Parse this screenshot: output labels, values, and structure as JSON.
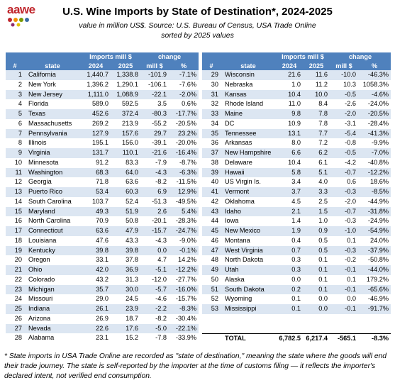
{
  "logo": "aawe",
  "title": "U.S. Wine Imports by State of Destination*, 2024-2025",
  "subtitle_lines": [
    "value in million US$. Source: U.S. Bureau of Census, USA Trade Online",
    "sorted by 2025 values"
  ],
  "headers": {
    "num": "#",
    "state": "state",
    "imports": "Imports mill $",
    "change": "change",
    "y2024": "2024",
    "y2025": "2025",
    "mill": "mill $",
    "pct": "%"
  },
  "left": {
    "rows": [
      [
        "1",
        "California",
        "1,440.7",
        "1,338.8",
        "-101.9",
        "-7.1%"
      ],
      [
        "2",
        "New York",
        "1,396.2",
        "1,290.1",
        "-106.1",
        "-7.6%"
      ],
      [
        "3",
        "New Jersey",
        "1,111.0",
        "1,088.9",
        "-22.1",
        "-2.0%"
      ],
      [
        "4",
        "Florida",
        "589.0",
        "592.5",
        "3.5",
        "0.6%"
      ],
      [
        "5",
        "Texas",
        "452.6",
        "372.4",
        "-80.3",
        "-17.7%"
      ],
      [
        "6",
        "Massachusetts",
        "269.2",
        "213.9",
        "-55.2",
        "-20.5%"
      ],
      [
        "7",
        "Pennsylvania",
        "127.9",
        "157.6",
        "29.7",
        "23.2%"
      ],
      [
        "8",
        "Illinois",
        "195.1",
        "156.0",
        "-39.1",
        "-20.0%"
      ],
      [
        "9",
        "Virginia",
        "131.7",
        "110.1",
        "-21.6",
        "-16.4%"
      ],
      [
        "10",
        "Minnesota",
        "91.2",
        "83.3",
        "-7.9",
        "-8.7%"
      ],
      [
        "11",
        "Washington",
        "68.3",
        "64.0",
        "-4.3",
        "-6.3%"
      ],
      [
        "12",
        "Georgia",
        "71.8",
        "63.6",
        "-8.2",
        "-11.5%"
      ],
      [
        "13",
        "Puerto Rico",
        "53.4",
        "60.3",
        "6.9",
        "12.9%"
      ],
      [
        "14",
        "South Carolina",
        "103.7",
        "52.4",
        "-51.3",
        "-49.5%"
      ],
      [
        "15",
        "Maryland",
        "49.3",
        "51.9",
        "2.6",
        "5.4%"
      ],
      [
        "16",
        "North Carolina",
        "70.9",
        "50.8",
        "-20.1",
        "-28.3%"
      ],
      [
        "17",
        "Connecticut",
        "63.6",
        "47.9",
        "-15.7",
        "-24.7%"
      ],
      [
        "18",
        "Louisiana",
        "47.6",
        "43.3",
        "-4.3",
        "-9.0%"
      ],
      [
        "19",
        "Kentucky",
        "39.8",
        "39.8",
        "0.0",
        "-0.1%"
      ],
      [
        "20",
        "Oregon",
        "33.1",
        "37.8",
        "4.7",
        "14.2%"
      ],
      [
        "21",
        "Ohio",
        "42.0",
        "36.9",
        "-5.1",
        "-12.2%"
      ],
      [
        "22",
        "Colorado",
        "43.2",
        "31.3",
        "-12.0",
        "-27.7%"
      ],
      [
        "23",
        "Michigan",
        "35.7",
        "30.0",
        "-5.7",
        "-16.0%"
      ],
      [
        "24",
        "Missouri",
        "29.0",
        "24.5",
        "-4.6",
        "-15.7%"
      ],
      [
        "25",
        "Indiana",
        "26.1",
        "23.9",
        "-2.2",
        "-8.3%"
      ],
      [
        "26",
        "Arizona",
        "26.9",
        "18.7",
        "-8.2",
        "-30.4%"
      ],
      [
        "27",
        "Nevada",
        "22.6",
        "17.6",
        "-5.0",
        "-22.1%"
      ],
      [
        "28",
        "Alabama",
        "23.1",
        "15.2",
        "-7.8",
        "-33.9%"
      ]
    ]
  },
  "right": {
    "rows": [
      [
        "29",
        "Wisconsin",
        "21.6",
        "11.6",
        "-10.0",
        "-46.3%"
      ],
      [
        "30",
        "Nebraska",
        "1.0",
        "11.2",
        "10.3",
        "1058.3%"
      ],
      [
        "31",
        "Kansas",
        "10.4",
        "10.0",
        "-0.5",
        "-4.6%"
      ],
      [
        "32",
        "Rhode Island",
        "11.0",
        "8.4",
        "-2.6",
        "-24.0%"
      ],
      [
        "33",
        "Maine",
        "9.8",
        "7.8",
        "-2.0",
        "-20.5%"
      ],
      [
        "34",
        "DC",
        "10.9",
        "7.8",
        "-3.1",
        "-28.4%"
      ],
      [
        "35",
        "Tennessee",
        "13.1",
        "7.7",
        "-5.4",
        "-41.3%"
      ],
      [
        "36",
        "Arkansas",
        "8.0",
        "7.2",
        "-0.8",
        "-9.9%"
      ],
      [
        "37",
        "New Hampshire",
        "6.6",
        "6.2",
        "-0.5",
        "-7.0%"
      ],
      [
        "38",
        "Delaware",
        "10.4",
        "6.1",
        "-4.2",
        "-40.8%"
      ],
      [
        "39",
        "Hawaii",
        "5.8",
        "5.1",
        "-0.7",
        "-12.2%"
      ],
      [
        "40",
        "US Virgin Is.",
        "3.4",
        "4.0",
        "0.6",
        "18.6%"
      ],
      [
        "41",
        "Vermont",
        "3.7",
        "3.3",
        "-0.3",
        "-8.5%"
      ],
      [
        "42",
        "Oklahoma",
        "4.5",
        "2.5",
        "-2.0",
        "-44.9%"
      ],
      [
        "43",
        "Idaho",
        "2.1",
        "1.5",
        "-0.7",
        "-31.8%"
      ],
      [
        "44",
        "Iowa",
        "1.4",
        "1.0",
        "-0.3",
        "-24.9%"
      ],
      [
        "45",
        "New Mexico",
        "1.9",
        "0.9",
        "-1.0",
        "-54.9%"
      ],
      [
        "46",
        "Montana",
        "0.4",
        "0.5",
        "0.1",
        "24.0%"
      ],
      [
        "47",
        "West Virginia",
        "0.7",
        "0.5",
        "-0.3",
        "-37.9%"
      ],
      [
        "48",
        "North Dakota",
        "0.3",
        "0.1",
        "-0.2",
        "-50.8%"
      ],
      [
        "49",
        "Utah",
        "0.3",
        "0.1",
        "-0.1",
        "-44.0%"
      ],
      [
        "50",
        "Alaska",
        "0.0",
        "0.1",
        "0.1",
        "179.2%"
      ],
      [
        "51",
        "South Dakota",
        "0.2",
        "0.1",
        "-0.1",
        "-65.6%"
      ],
      [
        "52",
        "Wyoming",
        "0.1",
        "0.0",
        "0.0",
        "-46.9%"
      ],
      [
        "53",
        "Mississippi",
        "0.1",
        "0.0",
        "-0.1",
        "-91.7%"
      ]
    ],
    "total": {
      "label": "TOTAL",
      "values": [
        "6,782.5",
        "6,217.4",
        "-565.1",
        "-8.3%"
      ]
    }
  },
  "footnote": "* State imports in USA Trade Online are recorded as \"state of destination,\" meaning the state where the goods will end their trade journey. The state is self-reported by the importer at the time of customs filing — it reflects the importer's declared intent, not verified end consumption."
}
